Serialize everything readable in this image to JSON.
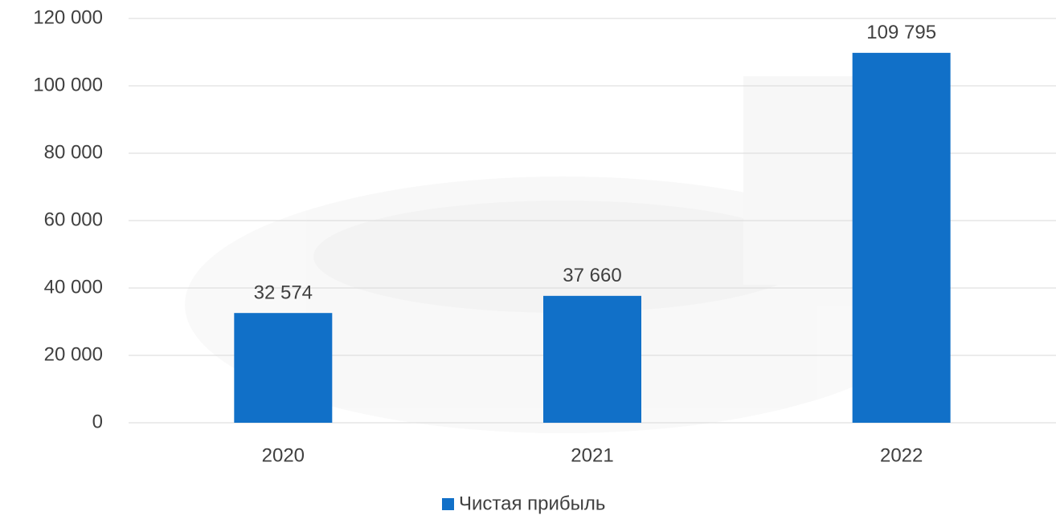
{
  "chart_data": {
    "type": "bar",
    "categories": [
      "2020",
      "2021",
      "2022"
    ],
    "series": [
      {
        "name": "Чистая прибыль",
        "color": "#1170c8",
        "values": [
          32574,
          37660,
          109795
        ],
        "value_labels": [
          "32 574",
          "37 660",
          "109 795"
        ]
      }
    ],
    "ylim": [
      0,
      120000
    ],
    "yticks": [
      0,
      {
        "value": 20000,
        "label": "20 000"
      },
      {
        "value": 40000,
        "label": "40 000"
      },
      {
        "value": 60000,
        "label": "60 000"
      },
      {
        "value": 80000,
        "label": "80 000"
      },
      {
        "value": 100000,
        "label": "100 000"
      },
      {
        "value": 120000,
        "label": "120 000"
      }
    ],
    "grid": true,
    "legend": "bottom"
  }
}
